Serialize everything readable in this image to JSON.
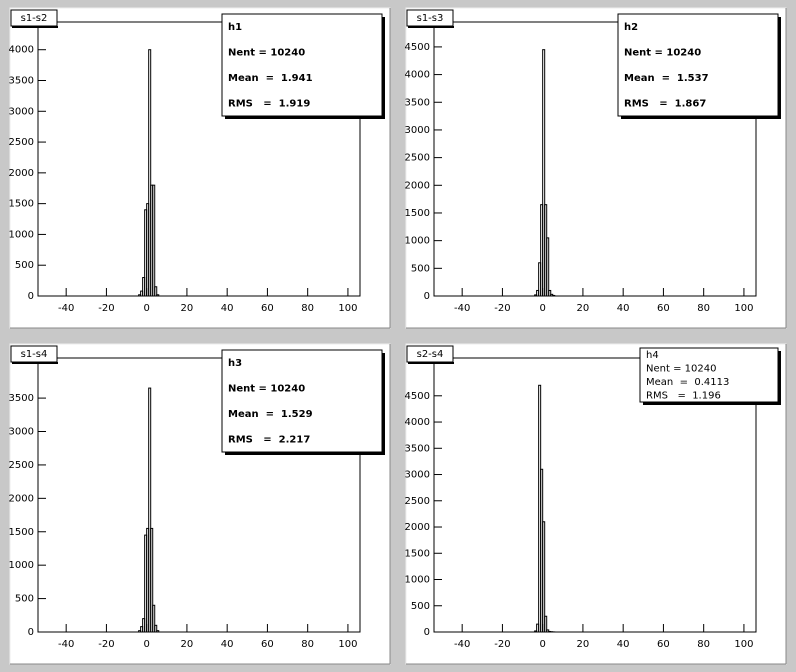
{
  "chart_data": [
    {
      "type": "histogram",
      "title": "s1-s2",
      "stats": {
        "name": "h1",
        "entries": "Nent = 10240",
        "mean": "Mean  =  1.941",
        "rms": "RMS   =  1.919"
      },
      "bins": [
        -4,
        -3,
        -2,
        -1,
        0,
        1,
        2,
        3,
        4,
        5,
        6
      ],
      "values": [
        20,
        80,
        300,
        1400,
        1500,
        4000,
        1800,
        1800,
        150,
        20
      ],
      "xlim": [
        -54,
        106
      ],
      "ylim": [
        0,
        4450
      ],
      "xticks": [
        -40,
        -20,
        0,
        20,
        40,
        60,
        80,
        100
      ],
      "yticks": [
        0,
        500,
        1000,
        1500,
        2000,
        2500,
        3000,
        3500,
        4000
      ],
      "color": "#000000"
    },
    {
      "type": "histogram",
      "title": "s1-s3",
      "stats": {
        "name": "h2",
        "entries": "Nent = 10240",
        "mean": "Mean  =  1.537",
        "rms": "RMS   =  1.867"
      },
      "bins": [
        -4,
        -3,
        -2,
        -1,
        0,
        1,
        2,
        3,
        4,
        5,
        6
      ],
      "values": [
        20,
        100,
        600,
        1650,
        4450,
        1650,
        1050,
        100,
        30,
        10
      ],
      "xlim": [
        -54,
        106
      ],
      "ylim": [
        0,
        4950
      ],
      "xticks": [
        -40,
        -20,
        0,
        20,
        40,
        60,
        80,
        100
      ],
      "yticks": [
        0,
        500,
        1000,
        1500,
        2000,
        2500,
        3000,
        3500,
        4000,
        4500
      ],
      "color": "#000000"
    },
    {
      "type": "histogram",
      "title": "s1-s4",
      "stats": {
        "name": "h3",
        "entries": "Nent = 10240",
        "mean": "Mean  =  1.529",
        "rms": "RMS   =  2.217"
      },
      "bins": [
        -4,
        -3,
        -2,
        -1,
        0,
        1,
        2,
        3,
        4,
        5,
        6
      ],
      "values": [
        20,
        80,
        200,
        1450,
        1550,
        3650,
        1550,
        400,
        100,
        20
      ],
      "xlim": [
        -54,
        106
      ],
      "ylim": [
        0,
        4100
      ],
      "xticks": [
        -40,
        -20,
        0,
        20,
        40,
        60,
        80,
        100
      ],
      "yticks": [
        0,
        500,
        1000,
        1500,
        2000,
        2500,
        3000,
        3500
      ],
      "color": "#000000"
    },
    {
      "type": "histogram",
      "title": "s2-s4",
      "stats": {
        "name": "h4",
        "entries": "Nent = 10240",
        "mean": "Mean  =  0.4113",
        "rms": "RMS   =  1.196"
      },
      "bins": [
        -4,
        -3,
        -2,
        -1,
        0,
        1,
        2,
        3,
        4,
        5,
        6
      ],
      "values": [
        20,
        150,
        4700,
        3100,
        2100,
        300,
        40,
        10,
        5,
        2
      ],
      "xlim": [
        -54,
        106
      ],
      "ylim": [
        0,
        5220
      ],
      "xticks": [
        -40,
        -20,
        0,
        20,
        40,
        60,
        80,
        100
      ],
      "yticks": [
        0,
        500,
        1000,
        1500,
        2000,
        2500,
        3000,
        3500,
        4000,
        4500
      ],
      "color": "#000000"
    }
  ]
}
